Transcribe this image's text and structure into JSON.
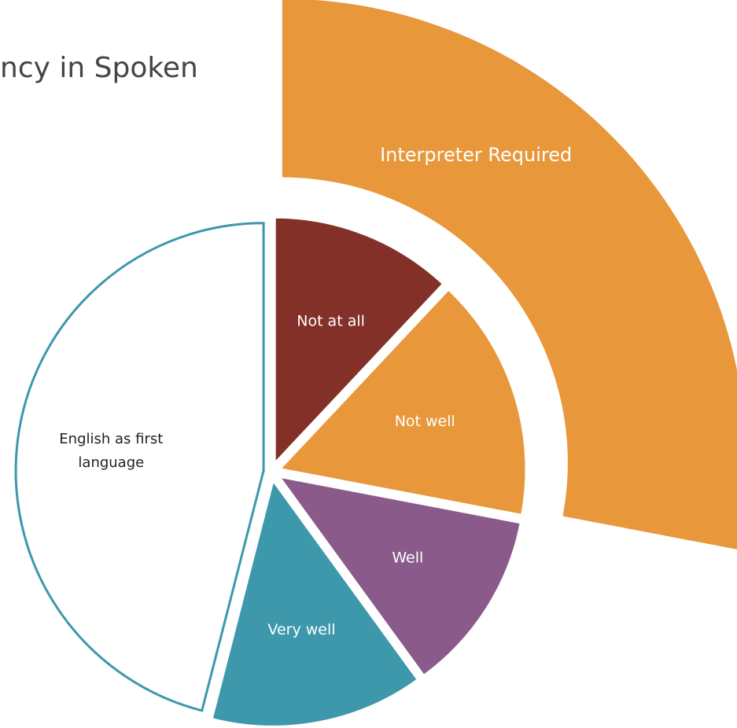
{
  "chart_data": {
    "type": "pie",
    "title": "ncy in Spoken",
    "categories": [
      "Not at all",
      "Not well",
      "Well",
      "Very well",
      "English as first language"
    ],
    "values": [
      12,
      16,
      12,
      14,
      46
    ],
    "colors": [
      "#833029",
      "#e8973b",
      "#8a5a8a",
      "#3d98ac",
      "#ffffff"
    ],
    "outline_color": "#3d98ac",
    "label_colors": [
      "#ffffff",
      "#ffffff",
      "#ffffff",
      "#ffffff",
      "#222222"
    ],
    "outer_ring": {
      "label": "Interpreter Required",
      "covers": [
        0,
        1
      ],
      "color": "#e8973b"
    }
  }
}
